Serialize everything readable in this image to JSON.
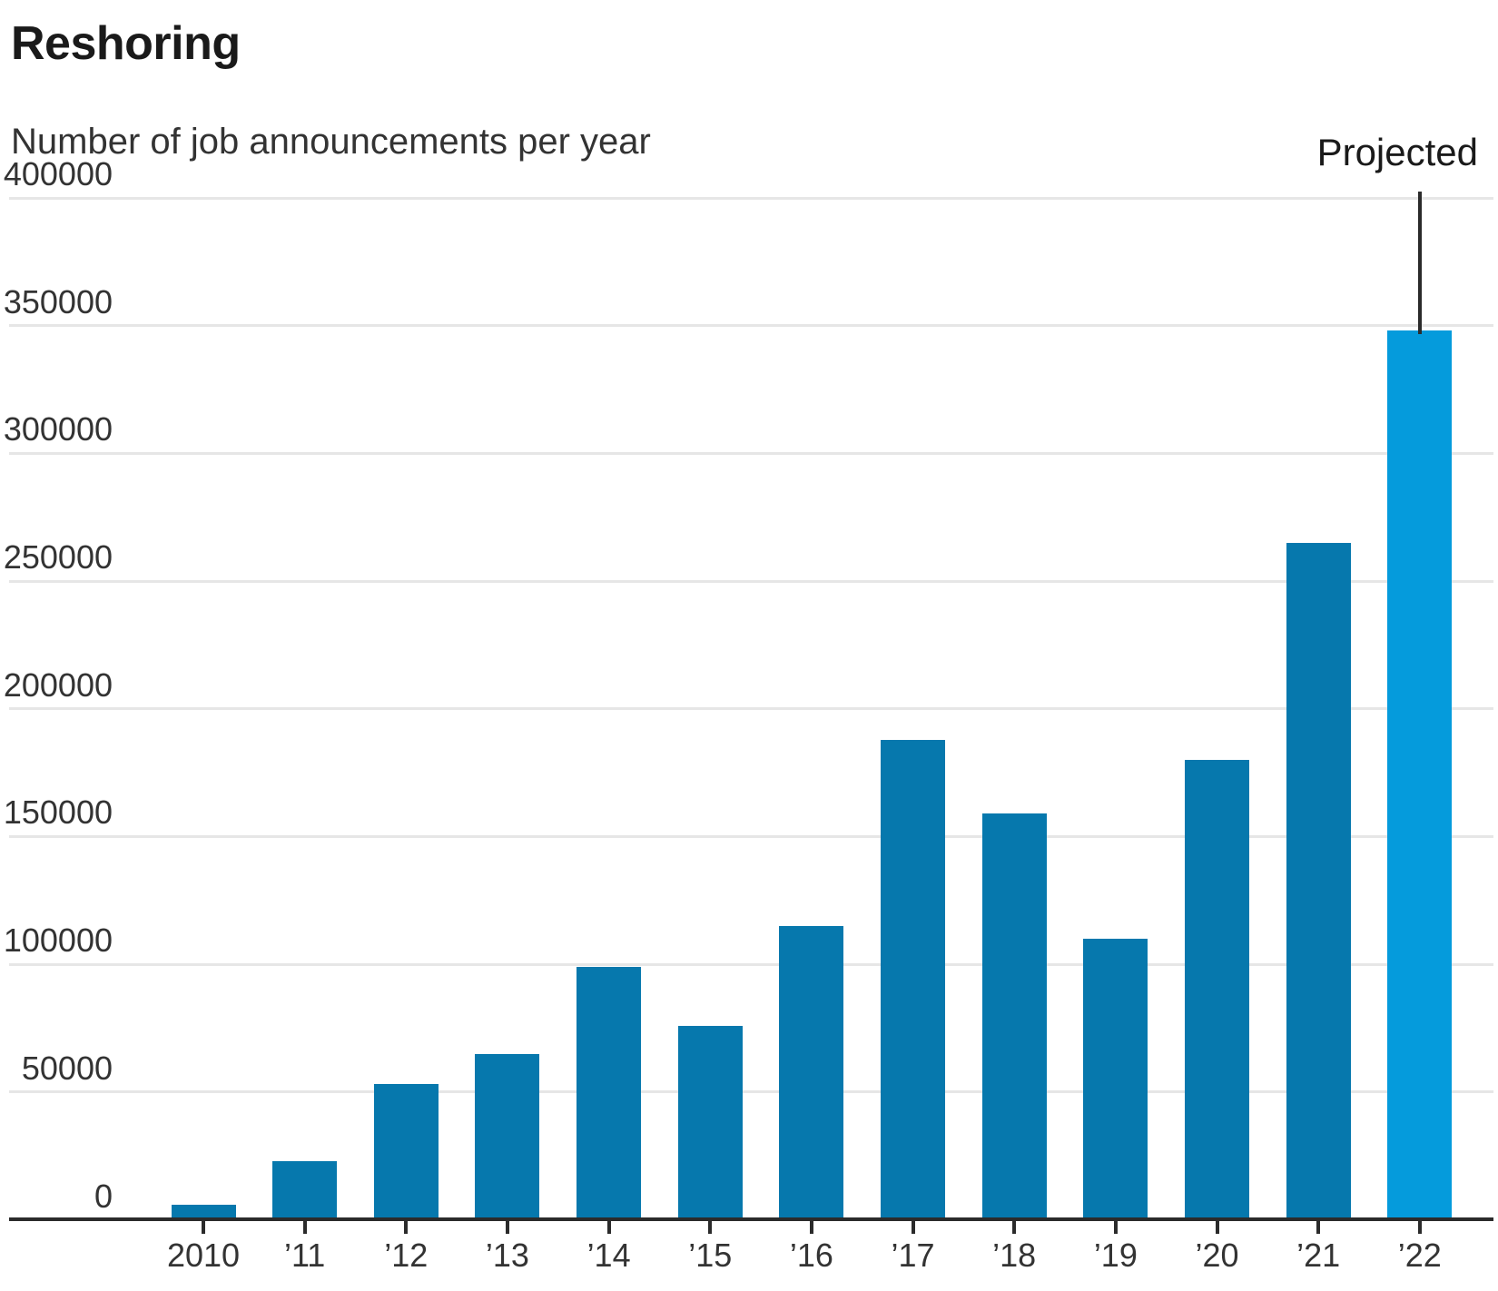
{
  "chart_data": {
    "type": "bar",
    "title": "Reshoring",
    "subtitle": "Number of job announcements per year",
    "xlabel": "",
    "ylabel": "",
    "ylim": [
      0,
      400000
    ],
    "y_ticks": [
      0,
      50000,
      100000,
      150000,
      200000,
      250000,
      300000,
      350000,
      400000
    ],
    "y_tick_labels": [
      "0",
      "50000",
      "100000",
      "150000",
      "200000",
      "250000",
      "300000",
      "350000",
      "400000"
    ],
    "grid": "horizontal",
    "legend": "none",
    "categories": [
      "2010",
      "’11",
      "’12",
      "’13",
      "’14",
      "’15",
      "’16",
      "’17",
      "’18",
      "’19",
      "’20",
      "’21",
      "’22"
    ],
    "values": [
      6000,
      23000,
      53000,
      65000,
      99000,
      76000,
      115000,
      188000,
      159000,
      110000,
      180000,
      265000,
      348000
    ],
    "series_name": "Job announcements per year",
    "annotation": {
      "label": "Projected",
      "category": "’22",
      "applies_to_index": 12
    },
    "colors": {
      "bar": "#0678ad",
      "projected_bar": "#059bdc",
      "axis_line": "#2b2b2b",
      "gridline": "#e6e6e6",
      "title_text": "#1a1a1a",
      "subtitle_text": "#333333",
      "tick_label_text": "#333333",
      "annotation_text": "#1a1a1a"
    }
  }
}
